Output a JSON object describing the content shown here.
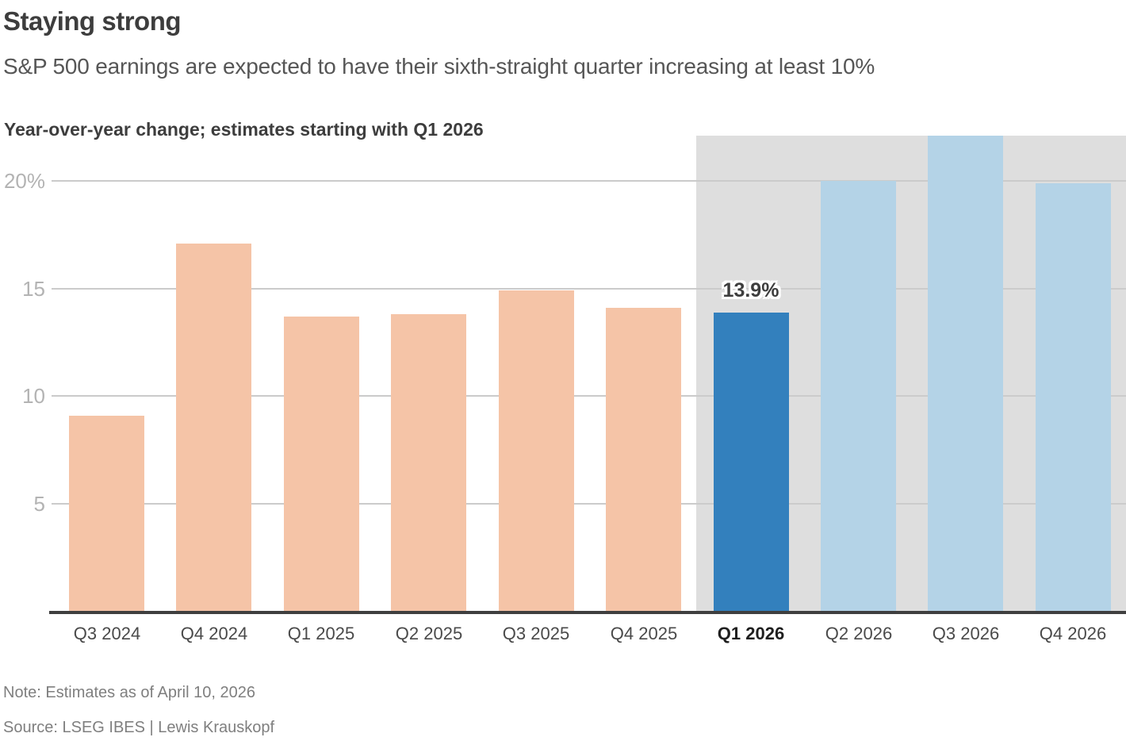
{
  "chart_data": {
    "type": "bar",
    "title": "Staying strong",
    "subtitle": "S&P 500 earnings are expected to have their sixth-straight quarter increasing at least 10%",
    "axis_label": "Year-over-year change; estimates starting with Q1 2026",
    "categories": [
      "Q3 2024",
      "Q4 2024",
      "Q1 2025",
      "Q2 2025",
      "Q3 2025",
      "Q4 2025",
      "Q1 2026",
      "Q2 2026",
      "Q3 2026",
      "Q4 2026"
    ],
    "values": [
      9.1,
      17.1,
      13.7,
      13.8,
      14.9,
      14.1,
      13.9,
      20.0,
      22.1,
      19.9
    ],
    "unit": "%",
    "ylim": [
      0,
      22.1
    ],
    "yticks": [
      {
        "value": 5,
        "label": "5"
      },
      {
        "value": 10,
        "label": "10"
      },
      {
        "value": 15,
        "label": "15"
      },
      {
        "value": 20,
        "label": "20%"
      }
    ],
    "grid": true,
    "legend": "none",
    "estimate_start_index": 6,
    "highlight_index": 6,
    "highlight_category": "Q1 2026",
    "annotation": {
      "index": 6,
      "text": "13.9%"
    },
    "clipped_indices": [
      8
    ],
    "colors": {
      "actual_bar": "#f5c4a7",
      "estimate_bar": "#b4d3e7",
      "highlight_bar": "#3380bd",
      "estimate_shade": "#dedede",
      "gridline": "#cbcbcb",
      "baseline": "#3f3f3f",
      "tick_label": "#b3b3b3"
    },
    "note": "Note: Estimates as of April 10, 2026",
    "source": "Source: LSEG IBES | Lewis Krauskopf"
  }
}
